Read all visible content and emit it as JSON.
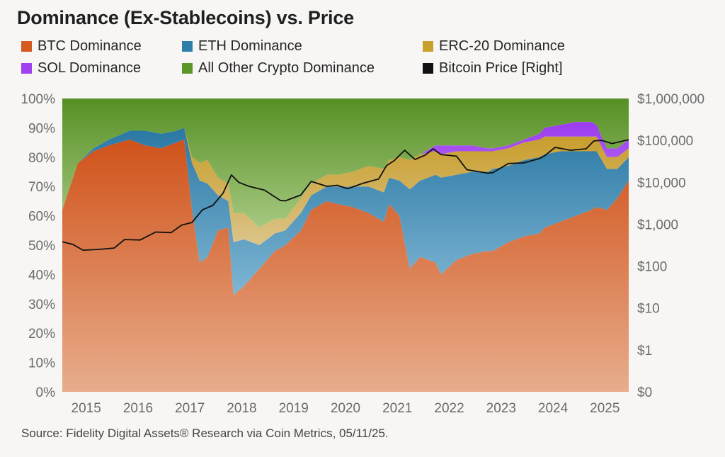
{
  "title": "Dominance (Ex-Stablecoins) vs. Price",
  "source": "Source: Fidelity Digital Assets® Research via Coin Metrics, 05/11/25.",
  "legend": [
    {
      "label": "BTC Dominance",
      "color": "#d45a22"
    },
    {
      "label": "ETH Dominance",
      "color": "#2f7ea8"
    },
    {
      "label": "ERC-20 Dominance",
      "color": "#c8a02c"
    },
    {
      "label": "SOL Dominance",
      "color": "#a040f0"
    },
    {
      "label": "All Other Crypto Dominance",
      "color": "#5d9628"
    },
    {
      "label": "Bitcoin Price [Right]",
      "color": "#111111"
    }
  ],
  "chart_data": {
    "type": "area",
    "stacked": true,
    "x_tick_labels": [
      "2015",
      "2016",
      "2017",
      "2018",
      "2019",
      "2020",
      "2021",
      "2022",
      "2023",
      "2024",
      "2025"
    ],
    "x_range": [
      2014.7,
      2025.62
    ],
    "y_left": {
      "range": [
        0,
        100
      ],
      "tick_labels": [
        "0%",
        "10%",
        "20%",
        "30%",
        "40%",
        "50%",
        "60%",
        "70%",
        "80%",
        "90%",
        "100%"
      ]
    },
    "y_right": {
      "scale": "log",
      "tick_labels": [
        "$0",
        "$1",
        "$10",
        "$100",
        "$1,000",
        "$10,000",
        "$100,000",
        "$1,000,000"
      ],
      "tick_values": [
        0,
        1,
        10,
        100,
        1000,
        10000,
        100000,
        1000000
      ]
    },
    "x": [
      2014.7,
      2015.0,
      2015.3,
      2015.6,
      2016.0,
      2016.3,
      2016.6,
      2016.9,
      2017.05,
      2017.2,
      2017.35,
      2017.5,
      2017.7,
      2017.9,
      2018.0,
      2018.2,
      2018.5,
      2018.8,
      2019.0,
      2019.3,
      2019.5,
      2019.8,
      2020.0,
      2020.3,
      2020.6,
      2020.9,
      2021.0,
      2021.2,
      2021.4,
      2021.6,
      2021.9,
      2022.0,
      2022.3,
      2022.6,
      2022.9,
      2023.0,
      2023.3,
      2023.6,
      2023.9,
      2024.0,
      2024.3,
      2024.6,
      2024.9,
      2025.0,
      2025.2,
      2025.4,
      2025.62
    ],
    "series": [
      {
        "name": "BTC Dominance",
        "values": [
          62,
          78,
          82,
          84,
          86,
          84,
          83,
          85,
          86,
          62,
          44,
          46,
          55,
          56,
          33,
          36,
          42,
          48,
          50,
          55,
          62,
          65,
          64,
          63,
          61,
          58,
          64,
          60,
          42,
          46,
          44,
          40,
          45,
          47,
          48,
          48,
          51,
          53,
          54,
          56,
          58,
          60,
          62,
          63,
          62,
          66,
          72
        ]
      },
      {
        "name": "ETH Dominance",
        "values": [
          0,
          0,
          1,
          2,
          3,
          5,
          5,
          4,
          4,
          16,
          28,
          25,
          12,
          9,
          18,
          16,
          8,
          6,
          5,
          6,
          5,
          5,
          6,
          7,
          9,
          10,
          9,
          12,
          27,
          26,
          30,
          33,
          29,
          28,
          27,
          28,
          26,
          26,
          26,
          25,
          24,
          22,
          20,
          19,
          14,
          10,
          8
        ]
      },
      {
        "name": "ERC-20 Dominance",
        "values": [
          0,
          0,
          0,
          0,
          0,
          0,
          0,
          0,
          0,
          2,
          6,
          8,
          6,
          6,
          10,
          9,
          6,
          5,
          4,
          5,
          4,
          4,
          4,
          5,
          7,
          8,
          6,
          8,
          10,
          9,
          8,
          8,
          8,
          7,
          7,
          6,
          6,
          6,
          6,
          6,
          5,
          5,
          5,
          5,
          4,
          4,
          3
        ]
      },
      {
        "name": "SOL Dominance",
        "values": [
          0,
          0,
          0,
          0,
          0,
          0,
          0,
          0,
          0,
          0,
          0,
          0,
          0,
          0,
          0,
          0,
          0,
          0,
          0,
          0,
          0,
          0,
          0,
          0,
          0,
          0,
          0,
          0,
          0,
          0,
          2,
          3,
          2,
          2,
          1,
          1,
          1,
          1,
          2,
          3,
          4,
          5,
          5,
          4,
          3,
          3,
          3
        ]
      },
      {
        "name": "All Other Crypto Dominance",
        "values": [
          38,
          22,
          17,
          14,
          11,
          11,
          12,
          11,
          10,
          20,
          22,
          21,
          27,
          29,
          39,
          39,
          44,
          41,
          41,
          34,
          29,
          26,
          26,
          25,
          23,
          24,
          21,
          20,
          21,
          19,
          16,
          16,
          16,
          16,
          17,
          17,
          16,
          14,
          12,
          10,
          9,
          8,
          8,
          9,
          17,
          17,
          14
        ]
      },
      {
        "name": "Bitcoin Price [Right]",
        "axis": "right",
        "x": [
          2014.7,
          2014.9,
          2015.1,
          2015.4,
          2015.7,
          2015.9,
          2016.2,
          2016.5,
          2016.8,
          2017.0,
          2017.2,
          2017.4,
          2017.6,
          2017.8,
          2017.96,
          2018.1,
          2018.3,
          2018.6,
          2018.9,
          2019.0,
          2019.3,
          2019.5,
          2019.8,
          2020.0,
          2020.2,
          2020.5,
          2020.8,
          2020.95,
          2021.1,
          2021.3,
          2021.5,
          2021.7,
          2021.85,
          2022.0,
          2022.3,
          2022.5,
          2022.9,
          2023.0,
          2023.3,
          2023.6,
          2023.9,
          2024.0,
          2024.2,
          2024.5,
          2024.8,
          2024.95,
          2025.1,
          2025.3,
          2025.62
        ],
        "values": [
          380,
          330,
          240,
          250,
          270,
          430,
          420,
          650,
          630,
          950,
          1100,
          2200,
          2800,
          5500,
          15000,
          10000,
          8000,
          6500,
          3700,
          3600,
          5000,
          10500,
          8000,
          8500,
          7000,
          9500,
          12000,
          25000,
          33000,
          58000,
          35000,
          45000,
          63000,
          46000,
          42000,
          20000,
          16500,
          17000,
          28000,
          29000,
          37000,
          43000,
          68000,
          58000,
          63000,
          97000,
          100000,
          84000,
          104000
        ]
      }
    ]
  }
}
